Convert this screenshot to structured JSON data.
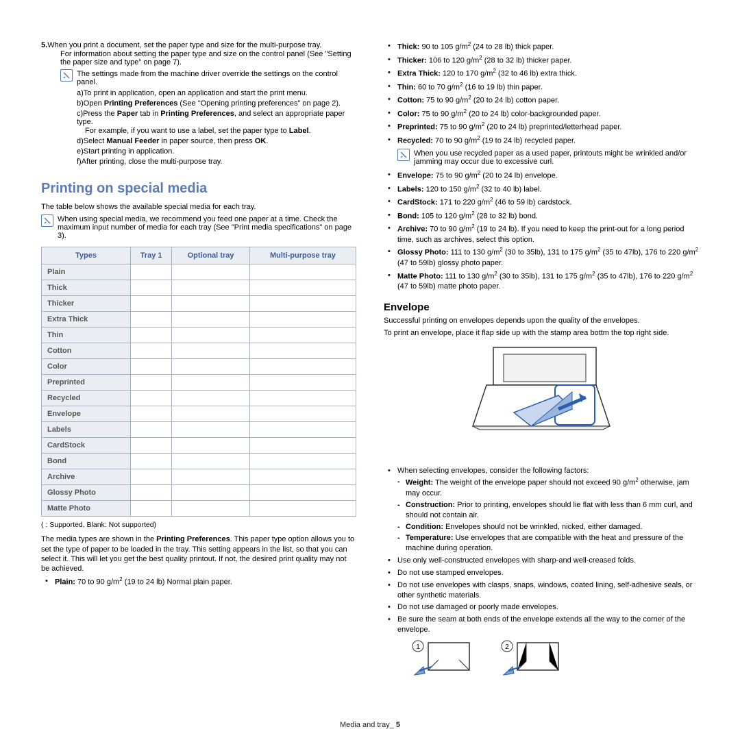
{
  "colors": {
    "accent_blue": "#5a7bb8",
    "table_header_bg": "#eaedf2",
    "table_header_text": "#3a5a9a",
    "border": "#a8b0bd",
    "note_icon_border": "#4a7ab8"
  },
  "left": {
    "step5": "5.",
    "step5_text": "When you print a document, set the paper type and size for the multi-purpose tray.",
    "step5_sub": "For information about setting the paper type and size on the control panel (See \"Setting the paper size and type\" on page 7).",
    "note1": "The settings made from the machine driver override the settings on the control panel.",
    "a": "a)To print in application, open an application and start the print menu.",
    "b_pre": "b)Open ",
    "b_bold": "Printing Preferences",
    "b_post": " (See \"Opening printing preferences\" on page 2).",
    "c_pre": "c)Press the ",
    "c_bold1": "Paper",
    "c_mid": " tab in ",
    "c_bold2": "Printing Preferences",
    "c_post": ", and select an appropriate paper type.",
    "c_sub_pre": "For example, if you want to use a label, set the paper type to ",
    "c_sub_bold": "Label",
    "c_sub_post": ".",
    "d_pre": "d)Select ",
    "d_bold": "Manual Feeder",
    "d_mid": " in paper source, then press ",
    "d_bold2": "OK",
    "d_post": ".",
    "e": "e)Start printing in application.",
    "f": "f)After printing, close the multi-purpose tray.",
    "h2": "Printing on special media",
    "table_intro": "The table below shows the available special media for each tray.",
    "note2": "When using special media, we recommend you feed one paper at a time. Check the maximum input number of media for each tray (See \"Print media specifications\" on page 3).",
    "table": {
      "headers": [
        "Types",
        "Tray 1",
        "Optional tray",
        "Multi-purpose tray"
      ],
      "rows": [
        "Plain",
        "Thick",
        "Thicker",
        "Extra Thick",
        "Thin",
        "Cotton",
        "Color",
        "Preprinted",
        "Recycled",
        "Envelope",
        "Labels",
        "CardStock",
        "Bond",
        "Archive",
        "Glossy Photo",
        "Matte Photo"
      ]
    },
    "table_note": "(   : Supported, Blank: Not supported)",
    "media_para_pre": "The media types are shown in the ",
    "media_para_bold": "Printing Preferences",
    "media_para_post": ". This paper type option allows you to set the type of paper to be loaded in the tray. This setting appears in the list, so that you can select it. This will let you get the best quality printout. If not, the desired print quality may not be achieved.",
    "plain_bold": "Plain:",
    "plain_text": " 70 to 90 g/m",
    "plain_post": " (19 to 24 lb) Normal plain paper."
  },
  "right": {
    "specs": [
      {
        "name": "Thick:",
        "val": " 90 to 105 g/m",
        "post": " (24 to 28 lb) thick paper."
      },
      {
        "name": "Thicker:",
        "val": " 106 to 120 g/m",
        "post": " (28 to 32 lb) thicker paper."
      },
      {
        "name": "Extra Thick:",
        "val": " 120 to 170 g/m",
        "post": " (32 to 46 lb) extra thick."
      },
      {
        "name": "Thin:",
        "val": " 60 to 70 g/m",
        "post": " (16 to 19 lb) thin paper."
      },
      {
        "name": "Cotton:",
        "val": " 75 to 90 g/m",
        "post": " (20 to 24 lb) cotton paper."
      },
      {
        "name": "Color:",
        "val": " 75 to 90 g/m",
        "post": " (20 to 24 lb) color-backgrounded paper."
      },
      {
        "name": "Preprinted:",
        "val": " 75 to 90 g/m",
        "post": " (20 to 24 lb) preprinted/letterhead paper."
      },
      {
        "name": "Recycled:",
        "val": " 70 to 90 g/m",
        "post": " (19 to 24 lb) recycled paper."
      }
    ],
    "recycled_note": "When you use recycled paper as a used paper, printouts might be wrinkled and/or jamming may occur due to excessive curl.",
    "specs2": [
      {
        "name": "Envelope:",
        "val": " 75 to 90 g/m",
        "post": " (20 to 24 lb) envelope."
      },
      {
        "name": "Labels:",
        "val": " 120 to 150 g/m",
        "post": " (32 to 40 lb) label."
      },
      {
        "name": "CardStock:",
        "val": " 171 to 220 g/m",
        "post": " (46 to 59 lb) cardstock."
      },
      {
        "name": "Bond:",
        "val": " 105 to 120 g/m",
        "post": " (28 to 32 lb) bond."
      },
      {
        "name": "Archive:",
        "val": " 70 to 90 g/m",
        "post": " (19 to 24 lb). If you need to keep the print-out for a long period time, such as archives, select this option."
      }
    ],
    "glossy_bold": "Glossy Photo:",
    "glossy_text": " 111 to 130 g/m",
    "glossy_mid": " (30 to 35lb), 131 to 175 g/m",
    "glossy_mid2": " (35 to 47lb), 176 to 220 g/m",
    "glossy_post": " (47 to 59lb) glossy photo paper.",
    "matte_bold": "Matte Photo:",
    "matte_text": " 111 to 130 g/m",
    "matte_mid": " (30 to 35lb), 131 to 175 g/m",
    "matte_mid2": " (35 to 47lb), 176 to 220 g/m",
    "matte_post": " (47 to 59lb) matte photo paper.",
    "h3": "Envelope",
    "env_p1": "Successful printing on envelopes depends upon the quality of the envelopes.",
    "env_p2": "To print an envelope, place it flap side up with the stamp area bottm the top right side.",
    "env_factors": "When selecting envelopes, consider the following factors:",
    "weight_bold": "Weight:",
    "weight_text": " The weight of the envelope paper should not exceed 90 g/m",
    "weight_post": " otherwise, jam may occur.",
    "constr_bold": "Construction:",
    "constr_text": " Prior to printing, envelopes should lie flat with less than 6 mm curl, and should not contain air.",
    "cond_bold": "Condition:",
    "cond_text": " Envelopes should not be wrinkled, nicked, either damaged.",
    "temp_bold": "Temperature:",
    "temp_text": " Use envelopes that are compatible with the heat and pressure of the machine during operation.",
    "tips": [
      "Use only well-constructed envelopes with sharp-and well-creased folds.",
      "Do not use stamped envelopes.",
      "Do not use envelopes with clasps, snaps, windows, coated lining, self-adhesive seals, or other synthetic materials.",
      "Do not use damaged or poorly made envelopes.",
      "Be sure the seam at both ends of the envelope extends all the way to the corner of the envelope."
    ]
  },
  "footer": {
    "label": "Media and tray_",
    "page": " 5"
  }
}
